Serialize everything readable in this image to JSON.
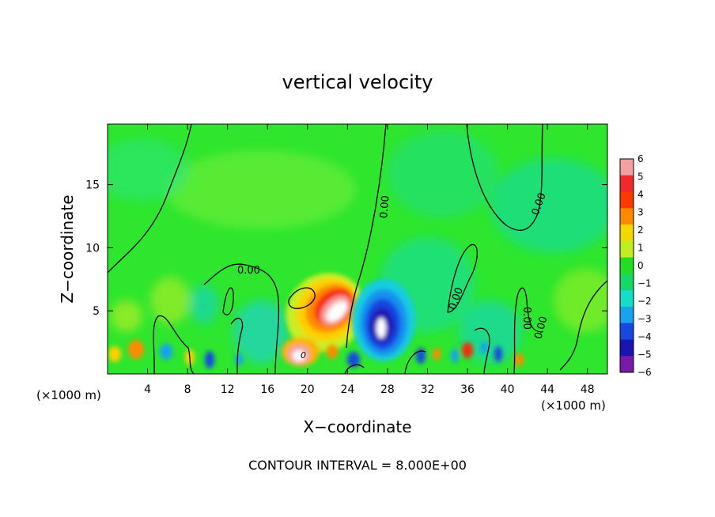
{
  "chart_data": {
    "type": "heatmap",
    "title": "vertical velocity",
    "xlabel": "X−coordinate",
    "ylabel": "Z−coordinate",
    "x_unit_left": "(×1000 m)",
    "x_unit_right": "(×1000 m)",
    "footer": "CONTOUR INTERVAL = 8.000E+00",
    "xlim": [
      0,
      50
    ],
    "ylim": [
      0,
      19.8
    ],
    "x_ticks": [
      4,
      8,
      12,
      16,
      20,
      24,
      28,
      32,
      36,
      40,
      44,
      48
    ],
    "x_tick_labels": [
      "4",
      "8",
      "12",
      "16",
      "20",
      "24",
      "28",
      "32",
      "36",
      "40",
      "44",
      "48"
    ],
    "y_ticks": [
      5,
      10,
      15
    ],
    "y_tick_labels": [
      "5",
      "10",
      "15"
    ],
    "colorbar": {
      "levels": [
        6,
        5,
        4,
        3,
        2,
        1,
        0,
        -1,
        -2,
        -3,
        -4,
        -5,
        -6
      ],
      "labels": [
        "6",
        "5",
        "4",
        "3",
        "2",
        "1",
        "0",
        "−1",
        "−2",
        "−3",
        "−4",
        "−5",
        "−6"
      ],
      "colors": [
        "#f4a0a0",
        "#ee2a2a",
        "#fa3a00",
        "#ff8a00",
        "#f0d800",
        "#c0ee20",
        "#22dd22",
        "#16d868",
        "#16dcc8",
        "#18a2f0",
        "#1848e0",
        "#1a14b0",
        "#7a1aa8"
      ]
    },
    "contour_labels": [
      "0.00",
      "0.00",
      "0.00",
      "0.00",
      "0.00",
      "0.00",
      "0"
    ],
    "features": [
      {
        "name": "updraft-max",
        "x": 21.5,
        "z": 5.2,
        "value": 6
      },
      {
        "name": "downdraft-min",
        "x": 27.2,
        "z": 3.6,
        "value": -6
      }
    ]
  }
}
